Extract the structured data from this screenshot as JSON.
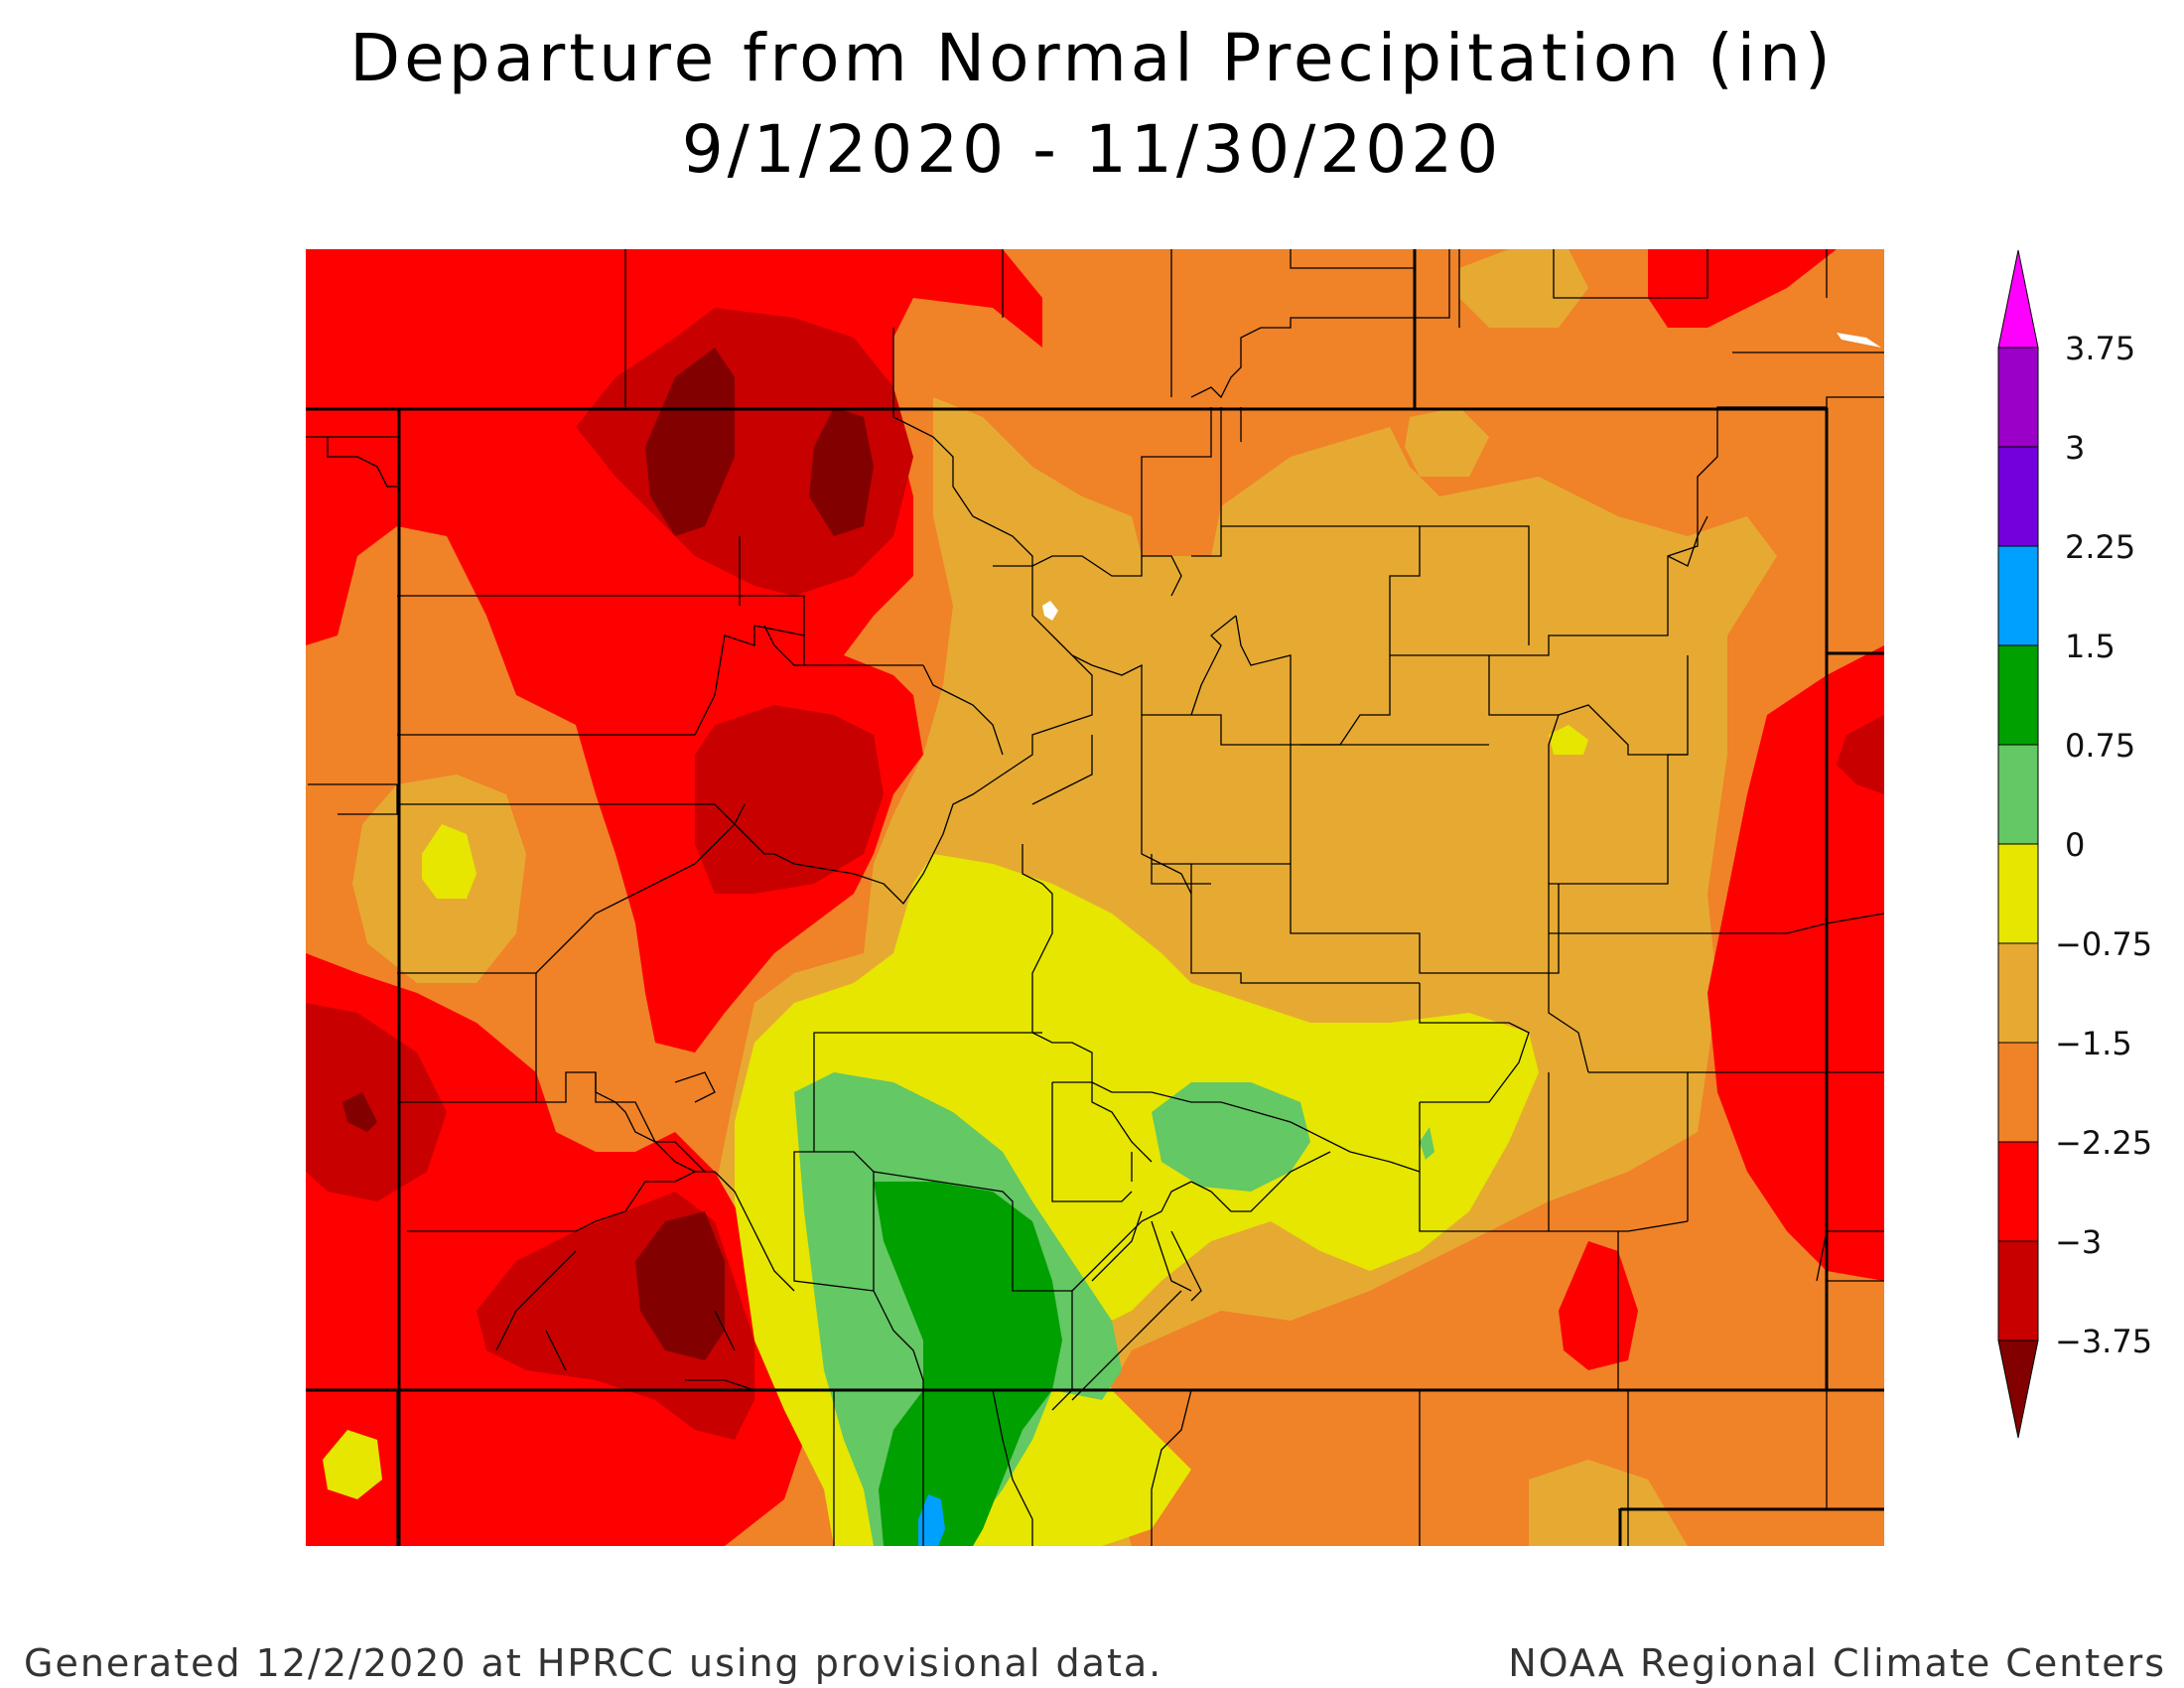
{
  "title_line1": "Departure from Normal Precipitation (in)",
  "title_line2": "9/1/2020 - 11/30/2020",
  "footer_left": "Generated 12/2/2020 at HPRCC using provisional data.",
  "footer_right": "NOAA Regional Climate Centers",
  "legend": {
    "labels": [
      "3.75",
      "3",
      "2.25",
      "1.5",
      "0.75",
      "0",
      "−0.75",
      "−1.5",
      "−2.25",
      "−3",
      "−3.75"
    ],
    "colors": [
      "#ff00ff",
      "#9a00c8",
      "#7300dc",
      "#00a0ff",
      "#00a000",
      "#64c864",
      "#e6e600",
      "#e6aa32",
      "#f08228",
      "#ff0000",
      "#c80000",
      "#820000"
    ]
  },
  "palette": {
    "lt_075": "#e6aa32",
    "lt_15": "#f08228",
    "lt_225": "#ff0000",
    "lt_3": "#c80000",
    "lt_375": "#820000",
    "gt_0": "#e6e600",
    "gt_075": "#64c864",
    "gt_15": "#00a000",
    "gt_225": "#00a0ff"
  }
}
